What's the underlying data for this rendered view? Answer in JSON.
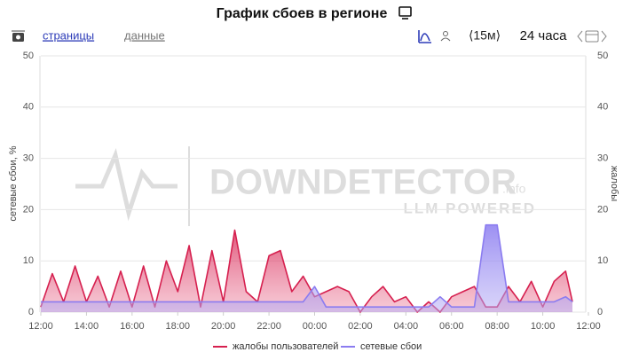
{
  "header": {
    "title": "График сбоев в регионе",
    "tabs": [
      "страницы",
      "данные"
    ],
    "interval": "⟨15м⟩",
    "range": "24 часа"
  },
  "watermark": {
    "brand": "DOWNDETECTOR",
    "suffix": ".info",
    "tagline": "LLM POWERED"
  },
  "chart_data": {
    "type": "line",
    "x": [
      0,
      0.5,
      1,
      1.5,
      2,
      2.5,
      3,
      3.5,
      4,
      4.5,
      5,
      5.5,
      6,
      6.5,
      7,
      7.5,
      8,
      8.5,
      9,
      9.5,
      10,
      10.5,
      11,
      11.5,
      12,
      12.5,
      13,
      13.5,
      14,
      14.5,
      15,
      15.5,
      16,
      16.5,
      17,
      17.5,
      18,
      18.5,
      19,
      19.5,
      20,
      20.5,
      21,
      21.5,
      22,
      22.5,
      23,
      23.3
    ],
    "series": [
      {
        "name": "жалобы пользователей",
        "color": "#d6204f",
        "axis": "y2",
        "values": [
          1,
          7.5,
          2,
          9,
          2,
          7,
          1,
          8,
          1,
          9,
          1,
          10,
          4,
          13,
          1,
          12,
          2,
          16,
          4,
          2,
          11,
          12,
          4,
          7,
          3,
          4,
          5,
          4,
          0,
          3,
          5,
          2,
          3,
          0,
          2,
          0,
          3,
          4,
          5,
          1,
          1,
          5,
          2,
          6,
          1,
          6,
          8,
          2
        ]
      },
      {
        "name": "сетевые сбои",
        "color": "#8b7cf0",
        "values": [
          2,
          2,
          2,
          2,
          2,
          2,
          2,
          2,
          2,
          2,
          2,
          2,
          2,
          2,
          2,
          2,
          2,
          2,
          2,
          2,
          2,
          2,
          2,
          2,
          5,
          1,
          1,
          1,
          1,
          1,
          1,
          1,
          1,
          1,
          1,
          3,
          1,
          1,
          1,
          17,
          17,
          2,
          2,
          2,
          2,
          2,
          3,
          2
        ]
      }
    ],
    "xlim": [
      0,
      24
    ],
    "xticks": [
      {
        "value": 0,
        "label": "12:00"
      },
      {
        "value": 2,
        "label": "14:00"
      },
      {
        "value": 4,
        "label": "16:00"
      },
      {
        "value": 6,
        "label": "18:00"
      },
      {
        "value": 8,
        "label": "20:00"
      },
      {
        "value": 10,
        "label": "22:00"
      },
      {
        "value": 12,
        "label": "00:00"
      },
      {
        "value": 14,
        "label": "02:00"
      },
      {
        "value": 16,
        "label": "04:00"
      },
      {
        "value": 18,
        "label": "06:00"
      },
      {
        "value": 20,
        "label": "08:00"
      },
      {
        "value": 22,
        "label": "10:00"
      },
      {
        "value": 24,
        "label": "12:00"
      }
    ],
    "ylim": [
      0,
      50
    ],
    "yticks": [
      0,
      10,
      20,
      30,
      40,
      50
    ],
    "ylabel": "сетевые сбои, %",
    "y2lim": [
      0,
      50
    ],
    "y2ticks": [
      0,
      10,
      20,
      30,
      40,
      50
    ],
    "y2label": "жалобы",
    "grid": true,
    "legend": "bottom"
  }
}
